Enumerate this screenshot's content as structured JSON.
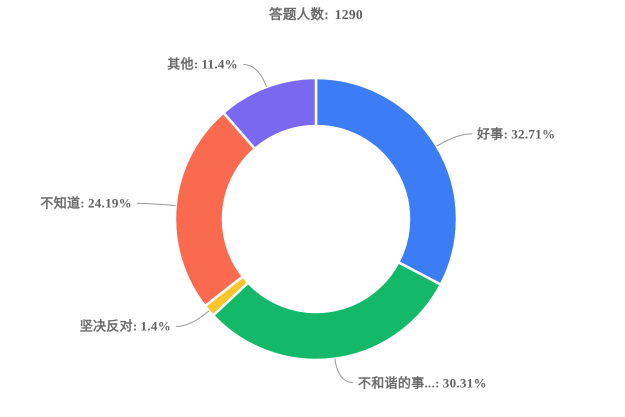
{
  "title": {
    "label": "答题人数:",
    "value": "1290"
  },
  "chart_data": {
    "type": "pie",
    "subtype": "donut",
    "title": "答题人数: 1290",
    "total_respondents": 1290,
    "start_angle": "top",
    "direction": "clockwise",
    "legend_position": "none",
    "center": [
      316,
      219
    ],
    "outer_radius": 141,
    "inner_radius": 93,
    "border_color": "#ffffff",
    "label_color": "#6b6b6b",
    "label_line_color": "#999999",
    "separator": ":",
    "series": [
      {
        "name": "好事",
        "value": 32.71,
        "display": "32.71%",
        "color": "#3c7cf4"
      },
      {
        "name": "不和谐的事...",
        "value": 30.31,
        "display": "30.31%",
        "color": "#13b968"
      },
      {
        "name": "坚决反对",
        "value": 1.4,
        "display": "1.4%",
        "color": "#fac42c"
      },
      {
        "name": "不知道",
        "value": 24.19,
        "display": "24.19%",
        "color": "#f96a4f"
      },
      {
        "name": "其他",
        "value": 11.4,
        "display": "11.4%",
        "color": "#7a68f0"
      }
    ]
  }
}
